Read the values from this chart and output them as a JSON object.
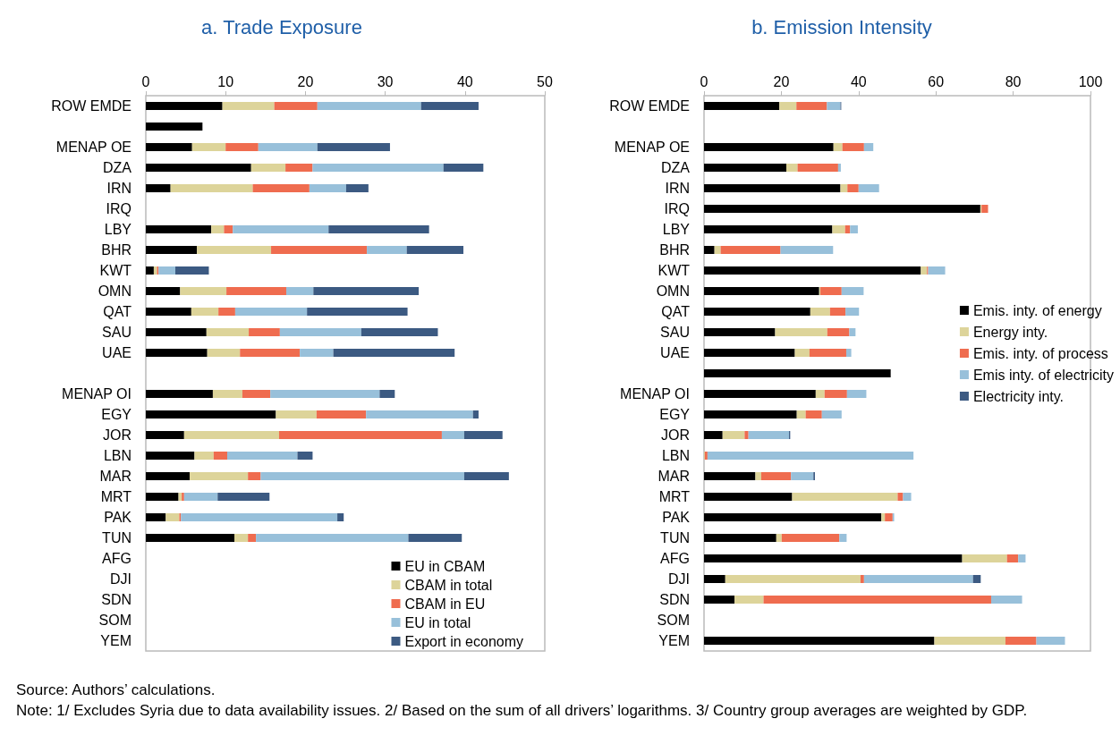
{
  "chart_data": [
    {
      "type": "bar",
      "orientation": "horizontal",
      "stacked": true,
      "title": "a. Trade Exposure",
      "categories": [
        "ROW EMDE",
        null,
        "MENAP OE",
        "DZA",
        "IRN",
        "IRQ",
        "LBY",
        "BHR",
        "KWT",
        "OMN",
        "QAT",
        "SAU",
        "UAE",
        null,
        "MENAP OI",
        "EGY",
        "JOR",
        "LBN",
        "MAR",
        "MRT",
        "PAK",
        "TUN",
        "AFG",
        "DJI",
        "SDN",
        "SOM",
        "YEM"
      ],
      "series": [
        {
          "name": "EU in CBAM",
          "color": "#000000",
          "values": [
            9.6,
            7.1,
            5.8,
            13.2,
            3.1,
            null,
            8.2,
            6.4,
            1.0,
            4.3,
            5.7,
            7.6,
            7.7,
            null,
            8.4,
            16.3,
            4.8,
            6.1,
            5.5,
            4.1,
            2.5,
            11.1,
            null,
            null,
            null,
            null,
            null
          ]
        },
        {
          "name": "CBAM in total",
          "color": "#ddd49a",
          "values": [
            6.5,
            null,
            4.2,
            4.3,
            10.3,
            null,
            1.6,
            9.3,
            0.4,
            5.8,
            3.4,
            5.3,
            4.1,
            null,
            3.7,
            5.1,
            11.9,
            2.4,
            7.3,
            0.4,
            1.7,
            1.7,
            null,
            null,
            null,
            null,
            null
          ]
        },
        {
          "name": "CBAM in EU",
          "color": "#ef6c4f",
          "values": [
            5.4,
            null,
            4.1,
            3.4,
            7.1,
            null,
            1.1,
            12.0,
            0.2,
            7.5,
            2.1,
            3.9,
            7.5,
            null,
            3.5,
            6.2,
            20.4,
            1.7,
            1.6,
            0.3,
            0.2,
            1.0,
            null,
            null,
            null,
            null,
            null
          ]
        },
        {
          "name": "EU in total",
          "color": "#98c0da",
          "values": [
            13.0,
            null,
            7.4,
            16.4,
            4.6,
            null,
            12.0,
            5.0,
            2.1,
            3.4,
            9.0,
            10.2,
            4.2,
            null,
            13.7,
            13.4,
            2.8,
            8.8,
            25.5,
            4.2,
            19.6,
            19.1,
            null,
            null,
            null,
            null,
            null
          ]
        },
        {
          "name": "Export in economy",
          "color": "#3c5a82",
          "values": [
            7.2,
            null,
            9.1,
            5.0,
            2.8,
            null,
            12.6,
            7.1,
            4.2,
            13.2,
            12.6,
            9.6,
            15.2,
            null,
            1.9,
            0.7,
            4.8,
            1.9,
            5.6,
            6.5,
            0.8,
            6.7,
            null,
            null,
            null,
            null,
            null
          ]
        }
      ],
      "xlim": [
        0,
        50
      ],
      "xticks": [
        0,
        10,
        20,
        30,
        40,
        50
      ],
      "grid": false,
      "legend": "bottom right",
      "annotations": [
        "Source: Authors’ calculations.",
        "Note: 1/ Excludes Syria due to data availability issues. 2/ Based on the sum of all drivers’ logarithms. 3/ Country group averages are weighted by GDP."
      ]
    },
    {
      "type": "bar",
      "orientation": "horizontal",
      "stacked": true,
      "title": "b. Emission Intensity",
      "categories": [
        "ROW EMDE",
        null,
        "MENAP OE",
        "DZA",
        "IRN",
        "IRQ",
        "LBY",
        "BHR",
        "KWT",
        "OMN",
        "QAT",
        "SAU",
        "UAE",
        null,
        "MENAP OI",
        "EGY",
        "JOR",
        "LBN",
        "MAR",
        "MRT",
        "PAK",
        "TUN",
        "AFG",
        "DJI",
        "SDN",
        "SOM",
        "YEM"
      ],
      "series": [
        {
          "name": "Emis. inty. of energy",
          "color": "#000000",
          "values": [
            19.5,
            null,
            33.5,
            21.3,
            35.3,
            71.5,
            33.2,
            2.7,
            56.1,
            29.8,
            27.5,
            18.4,
            23.5,
            48.3,
            28.9,
            24.0,
            4.8,
            null,
            13.3,
            22.8,
            45.9,
            18.7,
            66.8,
            5.5,
            7.9,
            null,
            59.6
          ]
        },
        {
          "name": "Energy inty.",
          "color": "#ddd49a",
          "values": [
            4.4,
            null,
            2.3,
            2.9,
            1.8,
            0.3,
            3.3,
            1.6,
            1.6,
            0.3,
            5.1,
            13.5,
            3.8,
            null,
            2.3,
            2.3,
            5.7,
            0.2,
            1.5,
            27.3,
            0.9,
            1.4,
            11.6,
            35.0,
            7.5,
            null,
            18.4
          ]
        },
        {
          "name": "Emis. inty. of process",
          "color": "#ef6c4f",
          "values": [
            7.9,
            null,
            5.6,
            10.5,
            2.9,
            1.7,
            1.3,
            15.5,
            0.3,
            5.5,
            4.0,
            5.7,
            9.5,
            null,
            5.8,
            4.2,
            1.0,
            0.7,
            7.7,
            1.4,
            2.0,
            14.9,
            2.9,
            0.9,
            58.9,
            null,
            8.0
          ]
        },
        {
          "name": "Emis inty. of electricity",
          "color": "#98c0da",
          "values": [
            3.5,
            null,
            2.4,
            0.7,
            5.3,
            null,
            2.0,
            13.6,
            4.4,
            5.7,
            3.5,
            1.6,
            1.3,
            null,
            5.0,
            5.1,
            10.5,
            53.3,
            5.8,
            2.1,
            0.4,
            1.9,
            1.9,
            28.2,
            8.0,
            null,
            7.4
          ]
        },
        {
          "name": "Electricity inty.",
          "color": "#3c5a82",
          "values": [
            0.2,
            null,
            null,
            null,
            null,
            null,
            null,
            null,
            null,
            null,
            null,
            null,
            null,
            null,
            null,
            null,
            0.3,
            null,
            0.4,
            null,
            null,
            null,
            null,
            2.0,
            null,
            null,
            null
          ]
        }
      ],
      "xlim": [
        0,
        100
      ],
      "xticks": [
        0,
        20,
        40,
        60,
        80,
        100
      ],
      "grid": false,
      "legend": "right"
    }
  ]
}
